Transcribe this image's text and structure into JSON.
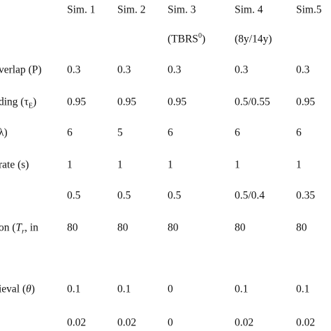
{
  "table": {
    "header": [
      "Sim. 1",
      "Sim. 2",
      "Sim. 3",
      "Sim. 4",
      "Sim.5"
    ],
    "subheader": [
      {
        "column": 2,
        "text": [
          "(TBRS",
          {
            "text": "0",
            "style": "sup"
          },
          ")"
        ]
      },
      {
        "column": 3,
        "text": [
          "(8y/14y)"
        ]
      }
    ],
    "rows": [
      {
        "label": [
          "verlap (P)"
        ],
        "values": [
          "0.3",
          "0.3",
          "0.3",
          "0.3",
          "0.3"
        ]
      },
      {
        "label": [
          "ding (τ",
          {
            "text": "E",
            "style": "sub"
          },
          ")"
        ],
        "values": [
          "0.95",
          "0.95",
          "0.95",
          "0.5/0.55",
          "0.95"
        ]
      },
      {
        "label": [
          "λ)"
        ],
        "values": [
          "6",
          "5",
          "6",
          "6",
          "6"
        ]
      },
      {
        "label": [
          "rate (s)"
        ],
        "values": [
          "1",
          "1",
          "1",
          "1",
          "1"
        ]
      },
      {
        "values": [
          "0.5",
          "0.5",
          "0.5",
          "0.5/0.4",
          "0.35"
        ]
      },
      {
        "label": [
          "on (",
          {
            "text": "T",
            "style": "i"
          },
          {
            "text": "r",
            "style": "sub-i"
          },
          ", in"
        ],
        "values": [
          "80",
          "80",
          "80",
          "80",
          "80"
        ]
      },
      {
        "label": [
          "ieval (",
          {
            "text": "θ",
            "style": "i"
          },
          ")"
        ],
        "values": [
          "0.1",
          "0.1",
          "0",
          "0.1",
          "0.1"
        ]
      },
      {
        "values": [
          "0.02",
          "0.02",
          "0",
          "0.02",
          "0.02"
        ]
      }
    ]
  }
}
